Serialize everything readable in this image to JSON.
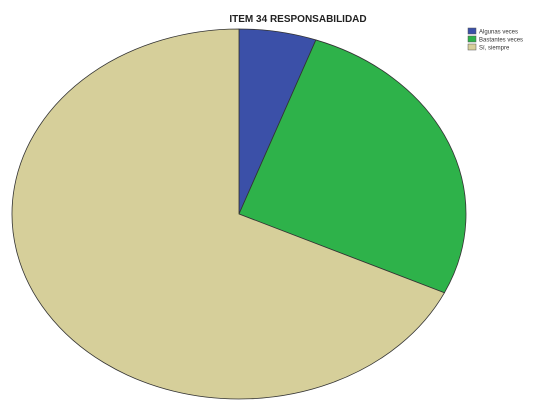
{
  "chart_data": {
    "type": "pie",
    "title": "ITEM 34 RESPONSABILIDAD",
    "legend_position": "top-right",
    "slices": [
      {
        "label": "Algunas veces",
        "value": 5.5,
        "color": "#3b50a8"
      },
      {
        "label": "Bastantes veces",
        "value": 26.5,
        "color": "#2eb24a"
      },
      {
        "label": "Sí, siempre",
        "value": 68.0,
        "color": "#d6cf9a"
      }
    ]
  }
}
